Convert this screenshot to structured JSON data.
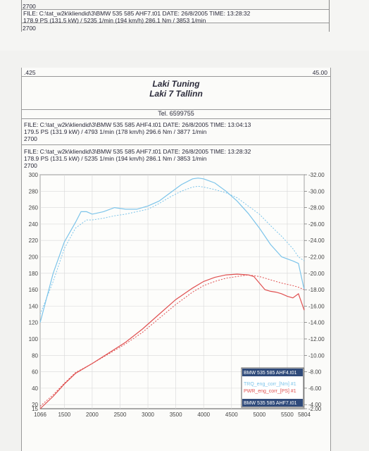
{
  "top": {
    "line_a": "2700",
    "file_line": "FILE: C:\\tat_w2k\\kliendid\\3\\BMW 535 585 AHF7.t01  DATE: 26/8/2005  TIME: 13:28:32",
    "power_line": "178.9 PS  (131.5 kW) / 5235 1/min (194 km/h)    286.1 Nm / 3853 1/min",
    "line_b": "2700"
  },
  "frame": {
    "left_value": ".425",
    "right_value": "45.00",
    "company": "Laki Tuning",
    "address": "Laki 7 Tallinn",
    "phone": "Tel. 6599755"
  },
  "run1": {
    "file_line": "FILE: C:\\tat_w2k\\kliendid\\3\\BMW 535 585 AHF4.t01  DATE: 26/8/2005  TIME: 13:04:13",
    "power_line": "179.5 PS  (131.9 kW) / 4793 1/min (178 km/h)    296.6 Nm / 3877 1/min",
    "line_c": "2700"
  },
  "run2": {
    "file_line": "FILE: C:\\tat_w2k\\kliendid\\3\\BMW 535 585 AHF7.t01  DATE: 26/8/2005  TIME: 13:28:32",
    "power_line": "178.9 PS  (131.5 kW) / 5235 1/min (194 km/h)    286.1 Nm / 3853 1/min",
    "line_c": "2700"
  },
  "colors": {
    "torque": "#7cc4ea",
    "power": "#e05050",
    "legend_dark": "#2f4a7a"
  },
  "chart_data": {
    "type": "line",
    "x_ticks": [
      "1066",
      "1500",
      "2000",
      "2500",
      "3000",
      "3500",
      "4000",
      "4500",
      "5000",
      "5500",
      "5804"
    ],
    "xlim": [
      1066,
      5804
    ],
    "y_left_ticks": [
      "15",
      "20",
      "40",
      "60",
      "80",
      "100",
      "120",
      "140",
      "160",
      "180",
      "200",
      "220",
      "240",
      "260",
      "280",
      "300"
    ],
    "ylim_left": [
      15,
      300
    ],
    "y_right_ticks": [
      "-2.00",
      "-4.00",
      "-6.00",
      "-8.00",
      "-10.00",
      "-12.00",
      "-14.00",
      "-16.00",
      "-18.00",
      "-20.00",
      "-22.00",
      "-24.00",
      "-26.00",
      "-28.00",
      "-30.00",
      "-32.00"
    ],
    "grid": true,
    "legend": {
      "placement": "bottom-right",
      "entries": [
        "BMW 535 585 AHF4.t01",
        "TRQ_eng_corr_[Nm] #1",
        "PWR_eng_corr_[PS] #1",
        "BMW 535 585 AHF7.t01"
      ]
    },
    "series": [
      {
        "name": "TRQ_eng_corr_[Nm] #1",
        "style": "solid",
        "color": "#7cc4ea",
        "x": [
          1066,
          1300,
          1500,
          1700,
          1800,
          1900,
          2000,
          2200,
          2400,
          2600,
          2800,
          3000,
          3200,
          3400,
          3600,
          3800,
          3900,
          4000,
          4200,
          4400,
          4600,
          4800,
          5000,
          5200,
          5400,
          5600,
          5700,
          5804
        ],
        "y": [
          120,
          180,
          218,
          242,
          255,
          255,
          252,
          255,
          260,
          258,
          258,
          262,
          268,
          278,
          288,
          295,
          296,
          295,
          290,
          280,
          268,
          253,
          235,
          215,
          200,
          195,
          192,
          160
        ]
      },
      {
        "name": "TRQ_eng_corr_[Nm] #2",
        "style": "dotted",
        "color": "#7cc4ea",
        "x": [
          1066,
          1300,
          1500,
          1700,
          1900,
          2000,
          2200,
          2400,
          2600,
          2800,
          3000,
          3200,
          3400,
          3600,
          3800,
          3900,
          4000,
          4200,
          4400,
          4600,
          4800,
          5000,
          5200,
          5400,
          5600,
          5700,
          5804
        ],
        "y": [
          130,
          170,
          210,
          235,
          245,
          245,
          247,
          250,
          252,
          255,
          258,
          265,
          273,
          280,
          285,
          286,
          285,
          282,
          278,
          272,
          262,
          252,
          238,
          225,
          210,
          200,
          195
        ]
      },
      {
        "name": "PWR_eng_corr_[PS] #1",
        "style": "solid",
        "color": "#e05050",
        "x": [
          1066,
          1300,
          1500,
          1700,
          2000,
          2300,
          2600,
          2900,
          3200,
          3500,
          3800,
          4000,
          4200,
          4400,
          4600,
          4800,
          4900,
          5000,
          5100,
          5200,
          5300,
          5400,
          5500,
          5600,
          5700,
          5804
        ],
        "y": [
          15,
          30,
          45,
          58,
          70,
          83,
          96,
          112,
          130,
          148,
          162,
          170,
          175,
          178,
          179,
          178,
          176,
          168,
          160,
          158,
          157,
          155,
          152,
          150,
          155,
          135
        ]
      },
      {
        "name": "PWR_eng_corr_[PS] #2",
        "style": "dotted",
        "color": "#e05050",
        "x": [
          1066,
          1300,
          1500,
          1700,
          2000,
          2300,
          2600,
          2900,
          3200,
          3500,
          3800,
          4000,
          4200,
          4400,
          4600,
          4800,
          5000,
          5200,
          5400,
          5600,
          5700,
          5804
        ],
        "y": [
          18,
          32,
          46,
          59,
          70,
          82,
          94,
          108,
          125,
          142,
          157,
          165,
          170,
          174,
          176,
          178,
          176,
          172,
          168,
          165,
          163,
          160
        ]
      }
    ]
  }
}
